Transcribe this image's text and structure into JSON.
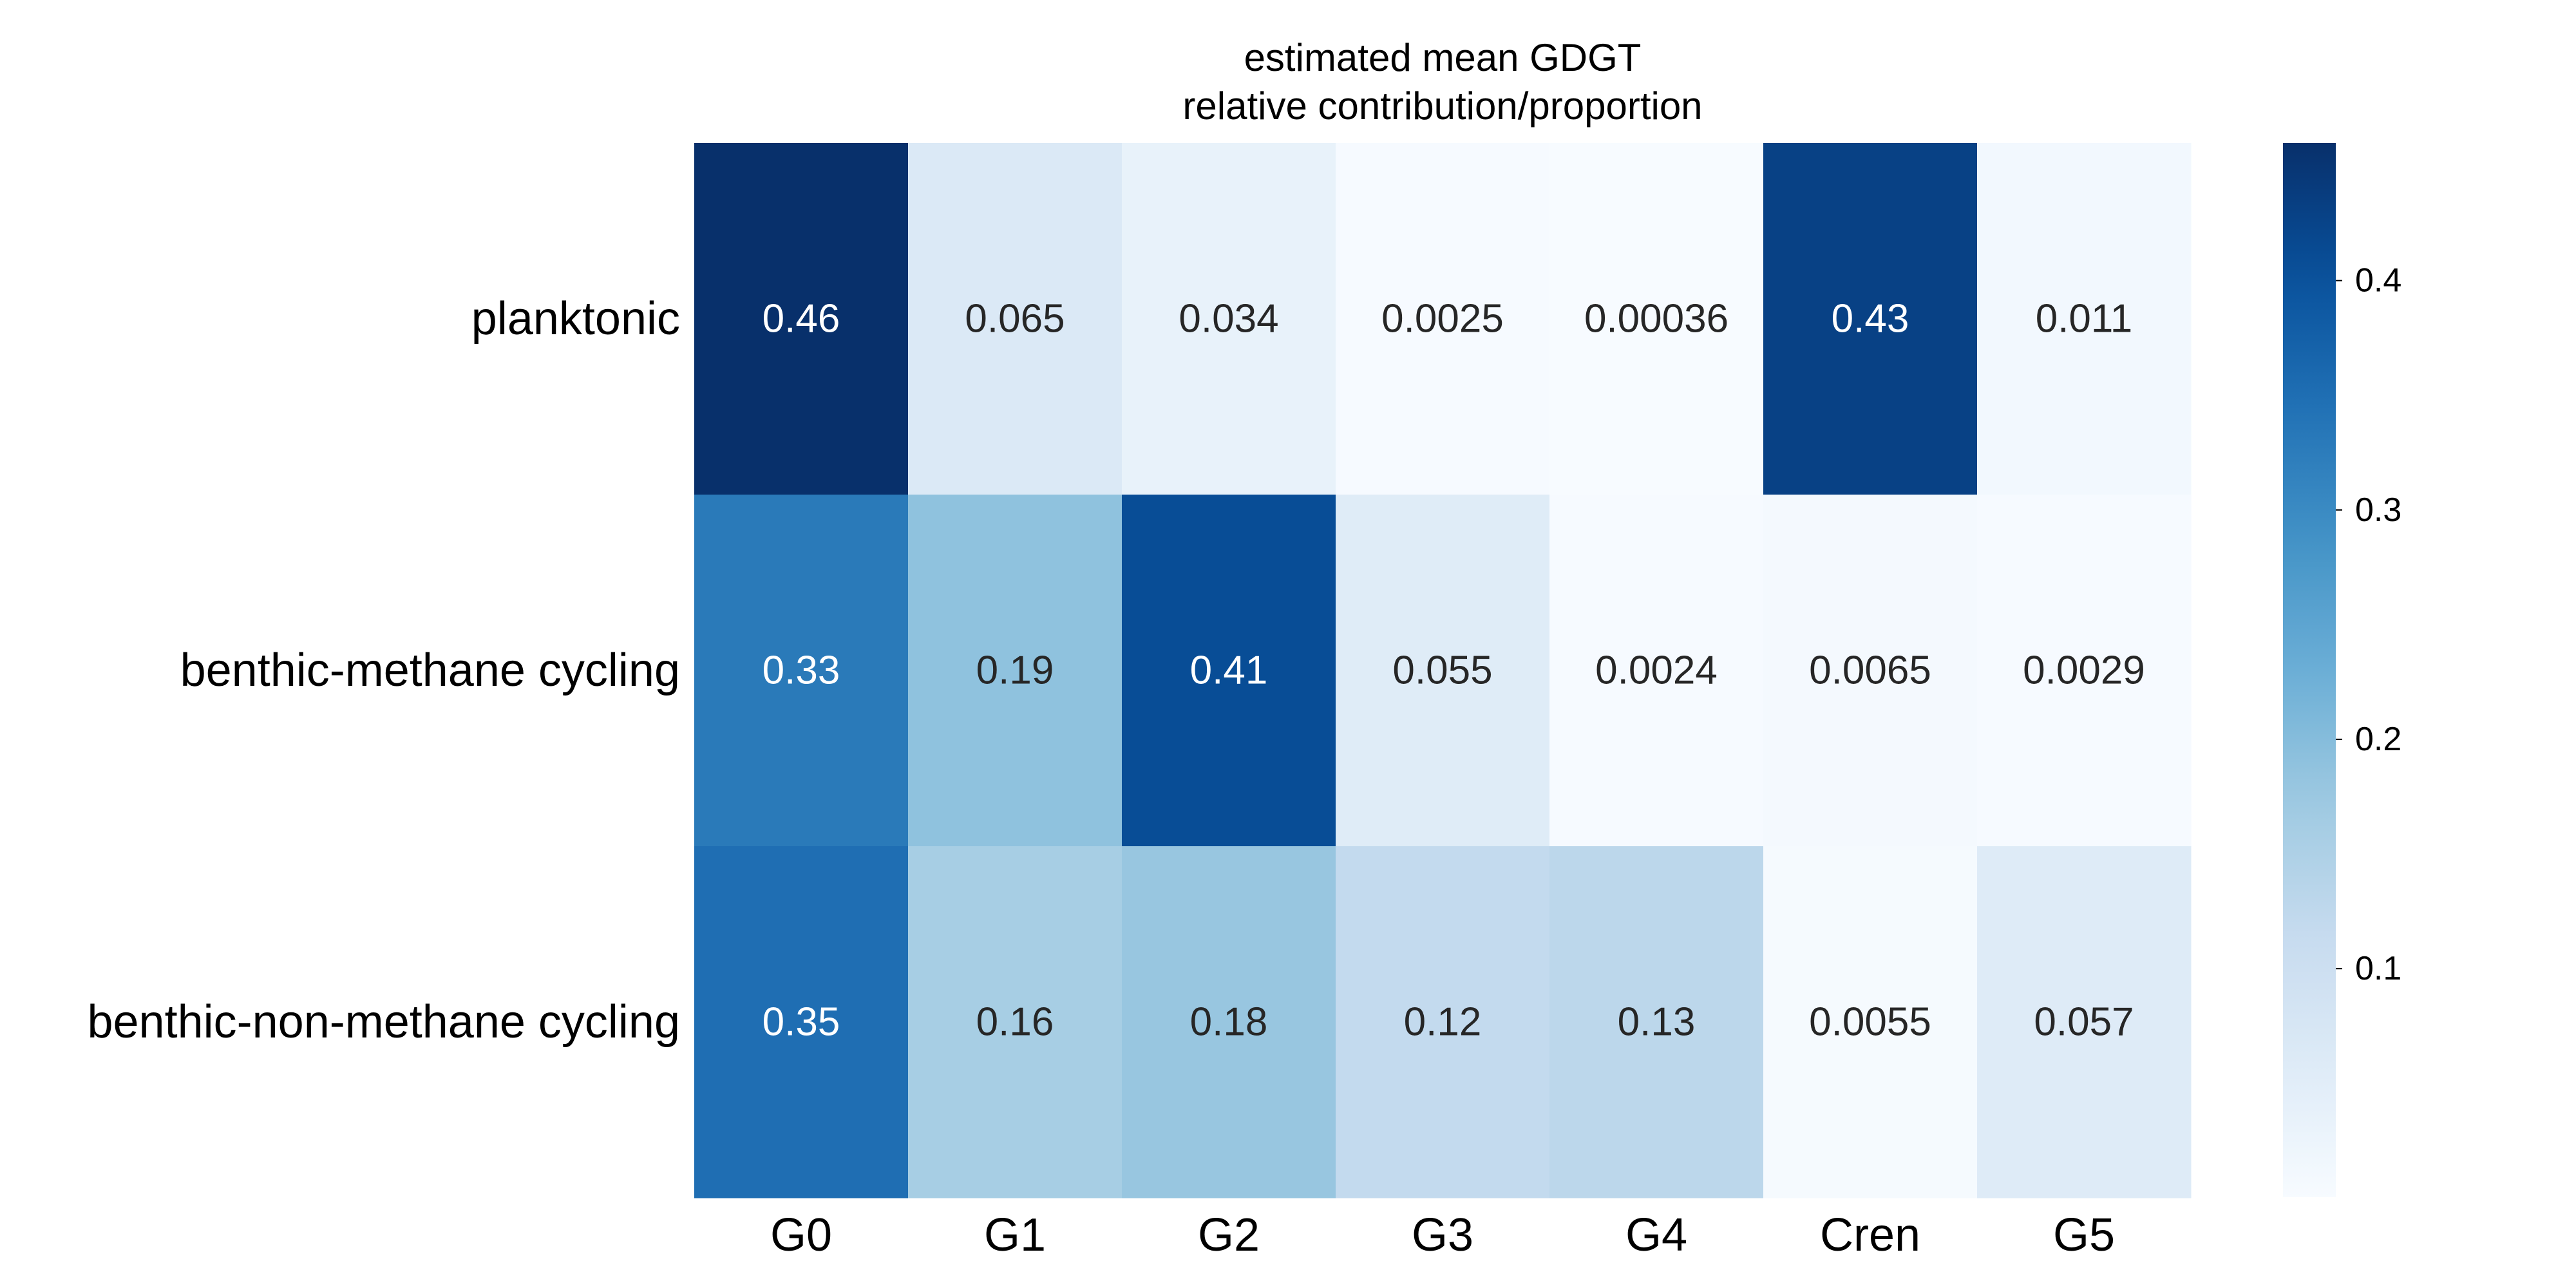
{
  "chart_data": {
    "type": "heatmap",
    "title": [
      "estimated mean GDGT",
      "relative contribution/proportion"
    ],
    "rows": [
      "planktonic",
      "benthic-methane cycling",
      "benthic-non-methane cycling"
    ],
    "columns": [
      "G0",
      "G1",
      "G2",
      "G3",
      "G4",
      "Cren",
      "G5"
    ],
    "values": [
      [
        0.46,
        0.065,
        0.034,
        0.0025,
        0.00036,
        0.43,
        0.011
      ],
      [
        0.33,
        0.19,
        0.41,
        0.055,
        0.0024,
        0.0065,
        0.0029
      ],
      [
        0.35,
        0.16,
        0.18,
        0.12,
        0.13,
        0.0055,
        0.057
      ]
    ],
    "value_labels": [
      [
        "0.46",
        "0.065",
        "0.034",
        "0.0025",
        "0.00036",
        "0.43",
        "0.011"
      ],
      [
        "0.33",
        "0.19",
        "0.41",
        "0.055",
        "0.0024",
        "0.0065",
        "0.0029"
      ],
      [
        "0.35",
        "0.16",
        "0.18",
        "0.12",
        "0.13",
        "0.0055",
        "0.057"
      ]
    ],
    "colorbar": {
      "min": 0.00036,
      "max": 0.46,
      "ticks": [
        0.1,
        0.2,
        0.3,
        0.4
      ],
      "tick_labels": [
        "0.1",
        "0.2",
        "0.3",
        "0.4"
      ],
      "colormap": "Blues",
      "placement": "right"
    },
    "grid": false,
    "legend": "none"
  }
}
